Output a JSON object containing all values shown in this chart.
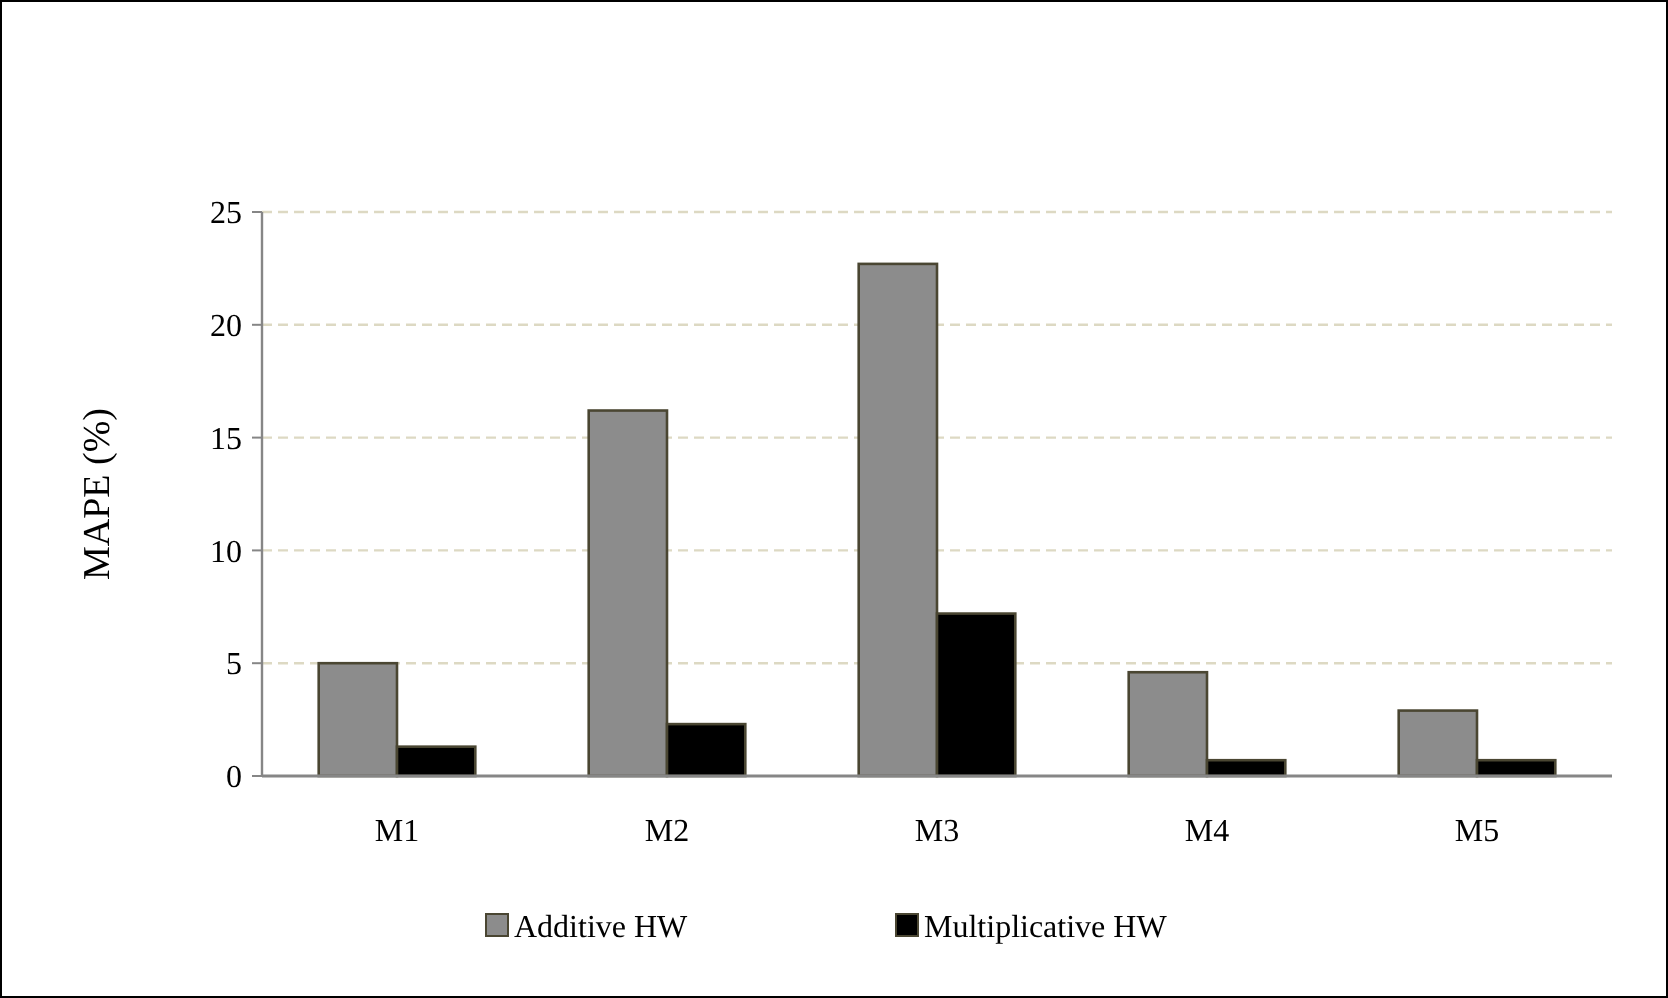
{
  "chart_data": {
    "type": "bar",
    "ylabel": "MAPE (%)",
    "categories": [
      "M1",
      "M2",
      "M3",
      "M4",
      "M5"
    ],
    "series": [
      {
        "name": "Additive HW",
        "color": "#8c8c8c",
        "values": [
          5.0,
          16.2,
          22.7,
          4.6,
          2.9
        ]
      },
      {
        "name": "Multiplicative HW",
        "color": "#000000",
        "values": [
          1.3,
          2.3,
          7.2,
          0.7,
          0.7
        ]
      }
    ],
    "ylim": [
      0,
      25
    ],
    "yticks": [
      0,
      5,
      10,
      15,
      20,
      25
    ],
    "grid": "y",
    "legend": "bottom"
  }
}
